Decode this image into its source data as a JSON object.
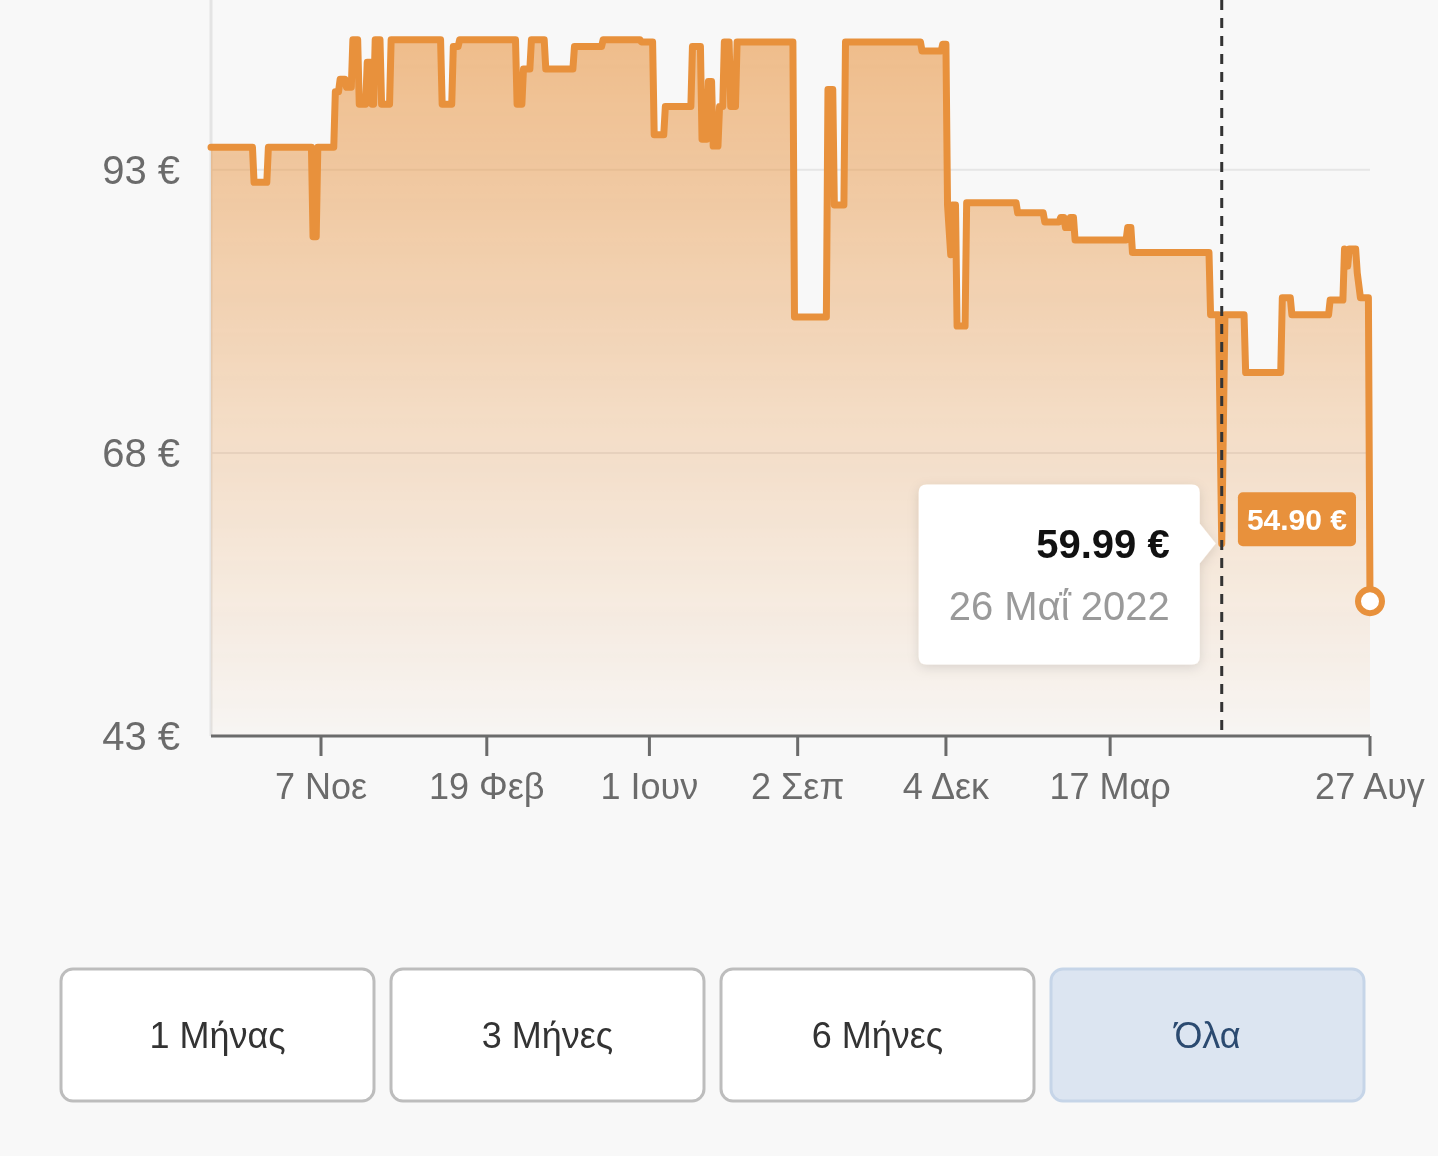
{
  "chart_data": {
    "type": "area",
    "color": "#e8913c",
    "x": [
      "2020-08-30",
      "2020-09-25",
      "2020-09-26",
      "2020-10-04",
      "2020-10-05",
      "2020-11-01",
      "2020-11-02",
      "2020-11-04",
      "2020-11-05",
      "2020-11-15",
      "2020-11-16",
      "2020-11-18",
      "2020-11-19",
      "2020-11-22",
      "2020-11-23",
      "2020-11-26",
      "2020-11-27",
      "2020-11-30",
      "2020-12-01",
      "2020-12-05",
      "2020-12-06",
      "2020-12-08",
      "2020-12-09",
      "2020-12-10",
      "2020-12-11",
      "2020-12-14",
      "2020-12-15",
      "2020-12-20",
      "2020-12-21",
      "2021-01-21",
      "2021-01-22",
      "2021-01-28",
      "2021-01-29",
      "2021-02-01",
      "2021-02-02",
      "2021-03-09",
      "2021-03-10",
      "2021-03-13",
      "2021-03-14",
      "2021-03-18",
      "2021-03-19",
      "2021-03-27",
      "2021-03-28",
      "2021-04-14",
      "2021-04-15",
      "2021-05-02",
      "2021-05-03",
      "2021-05-26",
      "2021-05-27",
      "2021-06-03",
      "2021-06-04",
      "2021-06-10",
      "2021-06-11",
      "2021-06-27",
      "2021-06-28",
      "2021-07-03",
      "2021-07-04",
      "2021-07-07",
      "2021-07-08",
      "2021-07-10",
      "2021-07-11",
      "2021-07-14",
      "2021-07-15",
      "2021-07-17",
      "2021-07-18",
      "2021-07-21",
      "2021-07-22",
      "2021-07-25",
      "2021-07-26",
      "2021-08-30",
      "2021-08-31",
      "2021-09-20",
      "2021-09-21",
      "2021-09-24",
      "2021-09-25",
      "2021-10-01",
      "2021-10-02",
      "2021-11-18",
      "2021-11-19",
      "2021-12-01",
      "2021-12-02",
      "2021-12-04",
      "2021-12-05",
      "2021-12-07",
      "2021-12-08",
      "2021-12-10",
      "2021-12-11",
      "2021-12-16",
      "2021-12-17",
      "2022-01-17",
      "2022-01-18",
      "2022-02-03",
      "2022-02-04",
      "2022-02-13",
      "2022-02-14",
      "2022-02-16",
      "2022-02-17",
      "2022-02-19",
      "2022-02-20",
      "2022-02-22",
      "2022-02-23",
      "2022-03-27",
      "2022-03-28",
      "2022-03-30",
      "2022-03-31",
      "2022-05-18",
      "2022-05-19",
      "2022-05-24",
      "2022-05-26",
      "2022-05-28",
      "2022-06-09",
      "2022-06-10",
      "2022-07-02",
      "2022-07-03",
      "2022-07-08",
      "2022-07-09",
      "2022-08-01",
      "2022-08-02",
      "2022-08-10",
      "2022-08-11",
      "2022-08-13",
      "2022-08-14",
      "2022-08-18",
      "2022-08-19",
      "2022-08-21",
      "2022-08-26",
      "2022-08-27"
    ],
    "values": [
      95,
      95,
      91.9,
      91.9,
      95,
      95,
      87.1,
      87.1,
      95,
      95,
      99.9,
      99.9,
      101,
      101,
      100.3,
      100.3,
      104.5,
      104.5,
      98.8,
      98.8,
      102.5,
      102.5,
      98.8,
      98.8,
      104.5,
      104.5,
      98.8,
      98.8,
      104.5,
      104.5,
      98.8,
      98.8,
      103.9,
      103.9,
      104.5,
      104.5,
      98.8,
      98.8,
      101.9,
      101.9,
      104.5,
      104.5,
      101.9,
      101.9,
      103.9,
      103.9,
      104.5,
      104.5,
      104.3,
      104.3,
      96.1,
      96.1,
      98.6,
      98.6,
      103.9,
      103.9,
      95.7,
      95.7,
      100.8,
      100.8,
      95.1,
      95.1,
      98.6,
      98.6,
      104.3,
      104.3,
      98.6,
      98.6,
      104.3,
      104.3,
      80,
      80,
      100.1,
      100.1,
      89.9,
      89.9,
      104.3,
      104.3,
      103.5,
      103.5,
      104.1,
      104.1,
      89.9,
      85.5,
      89.9,
      89.9,
      79.2,
      79.2,
      90.1,
      90.1,
      89.2,
      89.2,
      88.4,
      88.4,
      88.8,
      88.8,
      87.9,
      87.9,
      88.8,
      88.8,
      86.8,
      86.8,
      87.9,
      87.9,
      85.7,
      85.7,
      80.2,
      80.2,
      59.99,
      80.2,
      80.2,
      75.1,
      75.1,
      81.7,
      81.7,
      80.2,
      80.2,
      81.5,
      81.5,
      86,
      84.5,
      86,
      86,
      83.9,
      81.7,
      81.7,
      54.9
    ],
    "value_labels": [
      null,
      null,
      null,
      null,
      null,
      null,
      null,
      null,
      null,
      null,
      null,
      null,
      null,
      null,
      null,
      null,
      null,
      null,
      null,
      null,
      null,
      null,
      null,
      null,
      null,
      null,
      null,
      null,
      null,
      null,
      null,
      null,
      null,
      null,
      null,
      null,
      null,
      null,
      null,
      null,
      null,
      null,
      null,
      null,
      null,
      null,
      null,
      null,
      null,
      null,
      null,
      null,
      null,
      null,
      null,
      null,
      null,
      null,
      null,
      null,
      null,
      null,
      null,
      null,
      null,
      null,
      null,
      null,
      null,
      null,
      null,
      null,
      null,
      null,
      null,
      null,
      null,
      null,
      null,
      null,
      null,
      null,
      null,
      null,
      null,
      null,
      null,
      null,
      null,
      null,
      null,
      null,
      null,
      null,
      null,
      null,
      null,
      null,
      null,
      null,
      null,
      null,
      null,
      null,
      null,
      null,
      null,
      null,
      null,
      null,
      null,
      null,
      null,
      null,
      null,
      null,
      null,
      null,
      null,
      null,
      null,
      null,
      null,
      null,
      null,
      null,
      "54.90 €"
    ],
    "xlim": [
      "2020-08-30",
      "2022-08-27"
    ],
    "xticks": [
      {
        "value": "2020-11-07",
        "label": "7 Νοε"
      },
      {
        "value": "2021-02-19",
        "label": "19 Φεβ"
      },
      {
        "value": "2021-06-01",
        "label": "1 Ιουν"
      },
      {
        "value": "2021-09-02",
        "label": "2 Σεπ"
      },
      {
        "value": "2021-12-04",
        "label": "4 Δεκ"
      },
      {
        "value": "2022-03-17",
        "label": "17 Μαρ"
      },
      {
        "value": "2022-08-27",
        "label": "27 Αυγ"
      }
    ],
    "ylim": [
      43,
      108
    ],
    "yticks": [
      {
        "value": 43,
        "label": "43 €"
      },
      {
        "value": 68,
        "label": "68 €"
      },
      {
        "value": 93,
        "label": "93 €"
      }
    ],
    "grid": "y",
    "ref_lines": [
      {
        "axis": "x",
        "value": "2022-05-26",
        "color": "#333333",
        "line_style": "dashed"
      }
    ],
    "annotations": [
      {
        "text": "59.99 €",
        "x": "2022-05-26",
        "y": 59.99
      },
      {
        "text": "26 Μαΐ 2022",
        "x": "2022-05-26",
        "y": 59.99
      },
      "1 Μήνας",
      "3 Μήνες",
      "6 Μήνες",
      "Όλα"
    ]
  }
}
